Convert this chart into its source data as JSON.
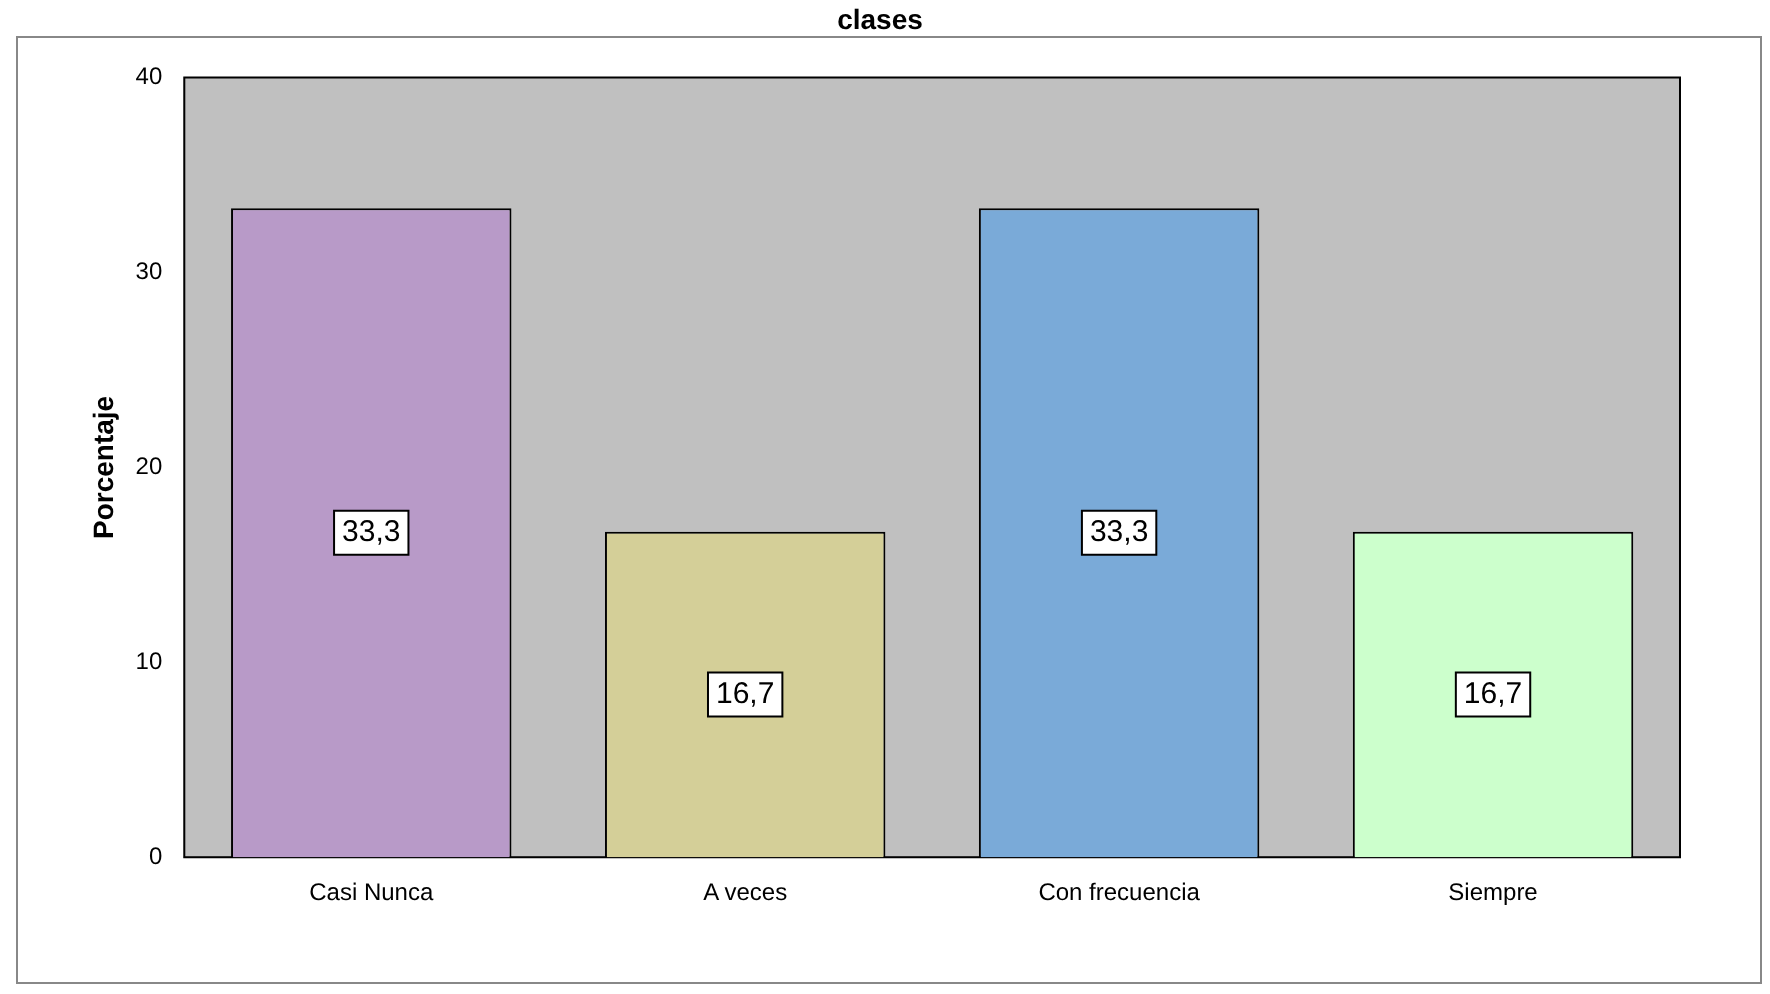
{
  "chart_data": {
    "type": "bar",
    "title": "clases",
    "ylabel": "Porcentaje",
    "categories": [
      "Casi Nunca",
      "A veces",
      "Con frecuencia",
      "Siempre"
    ],
    "values": [
      33.3,
      16.7,
      33.3,
      16.7
    ],
    "colors": [
      "#b89ac8",
      "#d4cf98",
      "#7aaad8",
      "#ccffcc"
    ],
    "value_labels": [
      "33,3",
      "16,7",
      "33,3",
      "16,7"
    ],
    "ylim": [
      0,
      40
    ],
    "yticks": [
      0,
      10,
      20,
      30,
      40
    ],
    "grid": false,
    "legend": false
  }
}
